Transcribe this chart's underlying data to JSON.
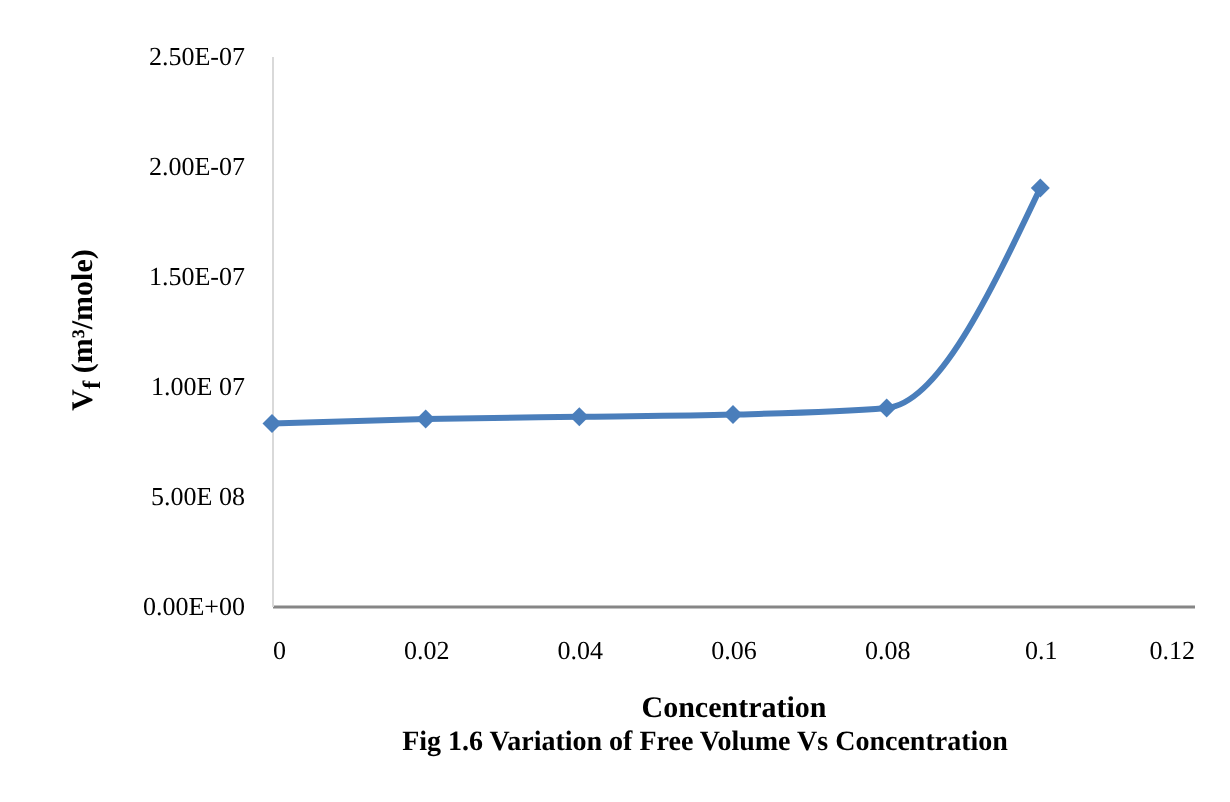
{
  "chart_data": {
    "type": "line",
    "xlabel": "Concentration",
    "ylabel": "V$_{f}$ (m³/mole)",
    "annotations": [
      "Fig 1.6 Variation of Free Volume Vs Concentration"
    ],
    "x": [
      0,
      0.02,
      0.04,
      0.06,
      0.08,
      0.1
    ],
    "series": [
      {
        "color": "#4a7ebb",
        "values": [
          8.3e-08,
          8.5e-08,
          8.6e-08,
          8.7e-08,
          9e-08,
          1.9e-07
        ]
      }
    ],
    "xlim": [
      0,
      0.12
    ],
    "xticks": [
      0,
      0.02,
      0.04,
      0.06,
      0.08,
      0.1,
      0.12
    ],
    "ylim": [
      0,
      2.5e-07
    ],
    "yticks": [
      {
        "value": 0,
        "label": "0.00E+00"
      },
      {
        "value": 5e-08,
        "label": "5.00E 08"
      },
      {
        "value": 1e-07,
        "label": "1.00E 07"
      },
      {
        "value": 1.5e-07,
        "label": "1.50E-07"
      },
      {
        "value": 2e-07,
        "label": "2.00E-07"
      },
      {
        "value": 2.5e-07,
        "label": "2.50E-07"
      }
    ],
    "grid": false,
    "legend": false,
    "marker": "diamond",
    "line_style": "solid"
  }
}
